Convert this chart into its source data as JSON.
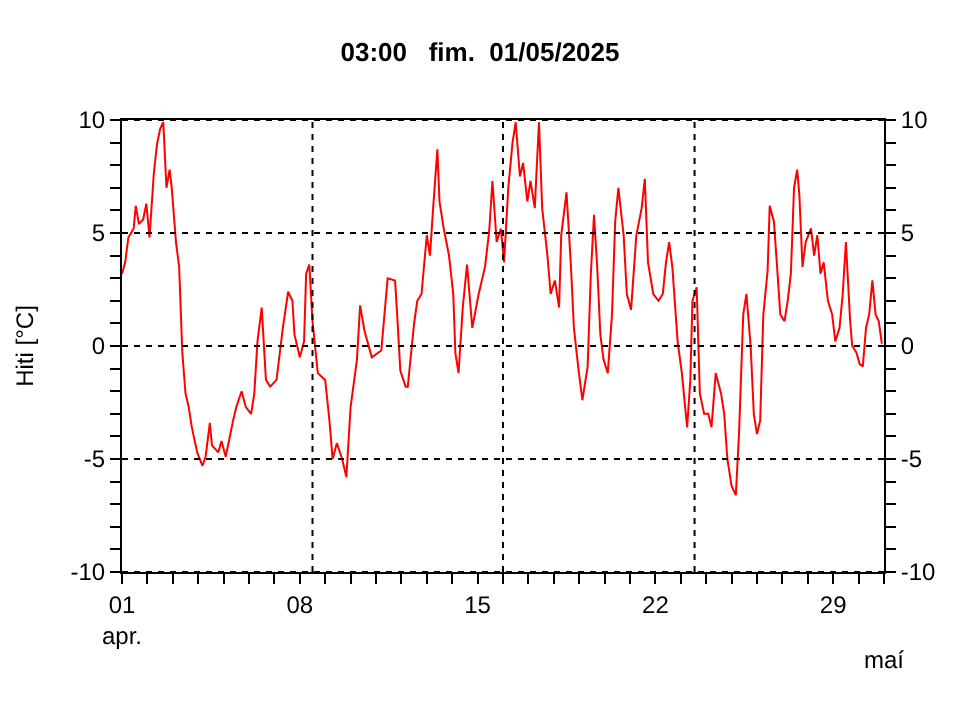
{
  "chart_data": {
    "type": "line",
    "title": "03:00   fim.  01/05/2025",
    "ylabel": "Hiti [°C]",
    "x": [
      "2025-04-01T00:00",
      "2025-04-01T03:00",
      "2025-04-01T06:00",
      "2025-04-01T11:00",
      "2025-04-01T13:00",
      "2025-04-01T16:00",
      "2025-04-01T20:00",
      "2025-04-01T23:00",
      "2025-04-02T02:00",
      "2025-04-02T06:00",
      "2025-04-02T09:00",
      "2025-04-02T12:00",
      "2025-04-02T15:00",
      "2025-04-02T18:00",
      "2025-04-02T21:00",
      "2025-04-02T23:00",
      "2025-04-03T03:00",
      "2025-04-03T06:00",
      "2025-04-03T09:00",
      "2025-04-03T12:00",
      "2025-04-03T15:00",
      "2025-04-03T18:00",
      "2025-04-03T23:00",
      "2025-04-04T04:00",
      "2025-04-04T07:00",
      "2025-04-04T11:00",
      "2025-04-04T13:00",
      "2025-04-04T19:00",
      "2025-04-04T22:00",
      "2025-04-05T02:00",
      "2025-04-05T09:00",
      "2025-04-05T12:00",
      "2025-04-05T17:00",
      "2025-04-05T21:00",
      "2025-04-06T02:00",
      "2025-04-06T05:00",
      "2025-04-06T08:00",
      "2025-04-06T12:00",
      "2025-04-06T16:00",
      "2025-04-06T20:00",
      "2025-04-07T02:00",
      "2025-04-07T08:00",
      "2025-04-07T13:00",
      "2025-04-07T17:00",
      "2025-04-07T19:00",
      "2025-04-08T00:00",
      "2025-04-08T04:00",
      "2025-04-08T06:00",
      "2025-04-08T09:00",
      "2025-04-08T12:00",
      "2025-04-08T17:00",
      "2025-04-09T00:00",
      "2025-04-09T04:00",
      "2025-04-09T07:00",
      "2025-04-09T11:00",
      "2025-04-09T16:00",
      "2025-04-09T20:00",
      "2025-04-10T00:00",
      "2025-04-10T06:00",
      "2025-04-10T09:00",
      "2025-04-10T13:00",
      "2025-04-10T20:00",
      "2025-04-11T05:00",
      "2025-04-11T08:00",
      "2025-04-11T11:00",
      "2025-04-11T18:00",
      "2025-04-11T20:00",
      "2025-04-11T23:00",
      "2025-04-12T04:00",
      "2025-04-12T06:00",
      "2025-04-12T12:00",
      "2025-04-12T15:00",
      "2025-04-12T19:00",
      "2025-04-13T00:00",
      "2025-04-13T03:00",
      "2025-04-13T06:00",
      "2025-04-13T10:00",
      "2025-04-13T12:00",
      "2025-04-13T16:00",
      "2025-04-13T21:00",
      "2025-04-14T01:00",
      "2025-04-14T03:00",
      "2025-04-14T06:00",
      "2025-04-14T10:00",
      "2025-04-14T14:00",
      "2025-04-14T19:00",
      "2025-04-15T01:00",
      "2025-04-15T07:00",
      "2025-04-15T11:00",
      "2025-04-15T14:00",
      "2025-04-15T18:00",
      "2025-04-15T22:00",
      "2025-04-16T01:00",
      "2025-04-16T05:00",
      "2025-04-16T09:00",
      "2025-04-16T12:00",
      "2025-04-16T16:00",
      "2025-04-16T19:00",
      "2025-04-16T23:00",
      "2025-04-17T02:00",
      "2025-04-17T06:00",
      "2025-04-17T10:00",
      "2025-04-17T13:00",
      "2025-04-17T18:00",
      "2025-04-17T21:00",
      "2025-04-18T01:00",
      "2025-04-18T05:00",
      "2025-04-18T07:00",
      "2025-04-18T12:00",
      "2025-04-18T16:00",
      "2025-04-18T19:00",
      "2025-04-18T23:00",
      "2025-04-19T03:00",
      "2025-04-19T08:00",
      "2025-04-19T11:00",
      "2025-04-19T14:00",
      "2025-04-19T17:00",
      "2025-04-19T20:00",
      "2025-04-19T23:00",
      "2025-04-20T03:00",
      "2025-04-20T07:00",
      "2025-04-20T10:00",
      "2025-04-20T13:00",
      "2025-04-20T18:00",
      "2025-04-20T21:00",
      "2025-04-21T01:00",
      "2025-04-21T06:00",
      "2025-04-21T11:00",
      "2025-04-21T14:00",
      "2025-04-21T17:00",
      "2025-04-21T22:00",
      "2025-04-22T03:00",
      "2025-04-22T07:00",
      "2025-04-22T10:00",
      "2025-04-22T13:00",
      "2025-04-22T16:00",
      "2025-04-22T21:00",
      "2025-04-23T01:00",
      "2025-04-23T06:00",
      "2025-04-23T09:00",
      "2025-04-23T11:00",
      "2025-04-23T15:00",
      "2025-04-23T18:00",
      "2025-04-23T22:00",
      "2025-04-24T02:00",
      "2025-04-24T05:00",
      "2025-04-24T09:00",
      "2025-04-24T14:00",
      "2025-04-24T17:00",
      "2025-04-24T20:00",
      "2025-04-25T00:00",
      "2025-04-25T04:00",
      "2025-04-25T07:00",
      "2025-04-25T11:00",
      "2025-04-25T14:00",
      "2025-04-25T18:00",
      "2025-04-25T21:00",
      "2025-04-26T00:00",
      "2025-04-26T03:00",
      "2025-04-26T06:00",
      "2025-04-26T10:00",
      "2025-04-26T12:00",
      "2025-04-26T16:00",
      "2025-04-26T19:00",
      "2025-04-26T22:00",
      "2025-04-27T02:00",
      "2025-04-27T05:00",
      "2025-04-27T08:00",
      "2025-04-27T11:00",
      "2025-04-27T14:00",
      "2025-04-27T16:00",
      "2025-04-27T19:00",
      "2025-04-27T22:00",
      "2025-04-28T03:00",
      "2025-04-28T06:00",
      "2025-04-28T09:00",
      "2025-04-28T12:00",
      "2025-04-28T15:00",
      "2025-04-28T19:00",
      "2025-04-28T23:00",
      "2025-04-29T02:00",
      "2025-04-29T06:00",
      "2025-04-29T09:00",
      "2025-04-29T12:00",
      "2025-04-29T16:00",
      "2025-04-29T18:00",
      "2025-04-29T22:00",
      "2025-04-30T01:00",
      "2025-04-30T04:00",
      "2025-04-30T07:00",
      "2025-04-30T10:00",
      "2025-04-30T13:00",
      "2025-04-30T16:00",
      "2025-04-30T19:00",
      "2025-04-30T22:00"
    ],
    "series": [
      {
        "color": "#ff0000",
        "values": [
          3.2,
          3.7,
          4.8,
          5.2,
          6.2,
          5.4,
          5.6,
          6.3,
          4.8,
          7.6,
          8.9,
          9.6,
          9.9,
          7.0,
          7.8,
          7.0,
          4.6,
          3.5,
          -0.3,
          -2.1,
          -2.7,
          -3.6,
          -4.7,
          -5.3,
          -4.9,
          -3.4,
          -4.4,
          -4.7,
          -4.2,
          -4.9,
          -3.3,
          -2.7,
          -2.0,
          -2.7,
          -3.0,
          -2.1,
          0.2,
          1.7,
          -1.5,
          -1.8,
          -1.5,
          0.8,
          2.4,
          2.0,
          0.5,
          -0.5,
          0.2,
          3.2,
          3.6,
          1.1,
          -1.2,
          -1.5,
          -3.3,
          -5.0,
          -4.3,
          -5.0,
          -5.8,
          -2.7,
          -0.6,
          1.8,
          0.7,
          -0.5,
          -0.2,
          1.4,
          3.0,
          2.9,
          1.4,
          -1.1,
          -1.8,
          -1.8,
          1.0,
          2.0,
          2.3,
          4.9,
          4.0,
          6.1,
          8.7,
          6.4,
          5.2,
          4.0,
          2.3,
          -0.3,
          -1.2,
          1.7,
          3.6,
          0.8,
          2.3,
          3.5,
          5.1,
          7.3,
          4.6,
          5.2,
          3.7,
          7.0,
          9.0,
          9.9,
          7.5,
          8.1,
          6.4,
          7.3,
          6.1,
          9.9,
          6.1,
          4.0,
          2.3,
          2.9,
          1.7,
          4.9,
          6.8,
          3.7,
          0.8,
          -0.9,
          -2.4,
          -0.9,
          3.2,
          5.8,
          3.5,
          0.5,
          -0.6,
          -1.2,
          1.4,
          5.5,
          7.0,
          4.9,
          2.3,
          1.6,
          4.9,
          6.1,
          7.4,
          3.7,
          2.3,
          2.0,
          2.3,
          3.7,
          4.6,
          3.5,
          0.2,
          -1.2,
          -3.6,
          -1.5,
          2.0,
          2.6,
          -2.1,
          -3.0,
          -3.0,
          -3.6,
          -1.2,
          -2.1,
          -3.0,
          -5.0,
          -6.2,
          -6.6,
          -3.9,
          1.4,
          2.3,
          0.0,
          -3.0,
          -3.9,
          -3.3,
          1.4,
          3.3,
          6.2,
          5.5,
          3.5,
          1.4,
          1.1,
          2.0,
          3.2,
          7.0,
          7.8,
          6.7,
          3.5,
          4.6,
          5.2,
          4.0,
          4.9,
          3.2,
          3.7,
          2.0,
          1.4,
          0.2,
          0.8,
          2.3,
          4.6,
          1.1,
          0.0,
          -0.3,
          -0.8,
          -0.9,
          0.8,
          1.4,
          2.9,
          1.4,
          1.1,
          0.1
        ]
      }
    ],
    "xlim": [
      "2025-04-01",
      "2025-05-01"
    ],
    "xticks": [
      {
        "value": "2025-04-01",
        "label": "01\napr."
      },
      {
        "value": "2025-04-02",
        "label": null
      },
      {
        "value": "2025-04-03",
        "label": null
      },
      {
        "value": "2025-04-04",
        "label": null
      },
      {
        "value": "2025-04-05",
        "label": null
      },
      {
        "value": "2025-04-06",
        "label": null
      },
      {
        "value": "2025-04-07",
        "label": null
      },
      {
        "value": "2025-04-08",
        "label": "08"
      },
      {
        "value": "2025-04-09",
        "label": null
      },
      {
        "value": "2025-04-10",
        "label": null
      },
      {
        "value": "2025-04-11",
        "label": null
      },
      {
        "value": "2025-04-12",
        "label": null
      },
      {
        "value": "2025-04-13",
        "label": null
      },
      {
        "value": "2025-04-14",
        "label": null
      },
      {
        "value": "2025-04-15",
        "label": "15"
      },
      {
        "value": "2025-04-16",
        "label": null
      },
      {
        "value": "2025-04-17",
        "label": null
      },
      {
        "value": "2025-04-18",
        "label": null
      },
      {
        "value": "2025-04-19",
        "label": null
      },
      {
        "value": "2025-04-20",
        "label": null
      },
      {
        "value": "2025-04-21",
        "label": null
      },
      {
        "value": "2025-04-22",
        "label": "22"
      },
      {
        "value": "2025-04-23",
        "label": null
      },
      {
        "value": "2025-04-24",
        "label": null
      },
      {
        "value": "2025-04-25",
        "label": null
      },
      {
        "value": "2025-04-26",
        "label": null
      },
      {
        "value": "2025-04-27",
        "label": null
      },
      {
        "value": "2025-04-28",
        "label": null
      },
      {
        "value": "2025-04-29",
        "label": "29"
      },
      {
        "value": "2025-04-30",
        "label": null
      },
      {
        "value": "2025-05-01",
        "label": null
      }
    ],
    "annotations": [
      "maí"
    ],
    "ylim": [
      -10,
      10
    ],
    "yticks": [
      -10,
      {
        "value": -9,
        "label": null
      },
      {
        "value": -8,
        "label": null
      },
      {
        "value": -7,
        "label": null
      },
      {
        "value": -6,
        "label": null
      },
      -5,
      {
        "value": -4,
        "label": null
      },
      {
        "value": -3,
        "label": null
      },
      {
        "value": -2,
        "label": null
      },
      {
        "value": -1,
        "label": null
      },
      0,
      {
        "value": 1,
        "label": null
      },
      {
        "value": 2,
        "label": null
      },
      {
        "value": 3,
        "label": null
      },
      {
        "value": 4,
        "label": null
      },
      5,
      {
        "value": 6,
        "label": null
      },
      {
        "value": 7,
        "label": null
      },
      {
        "value": 8,
        "label": null
      },
      {
        "value": 9,
        "label": null
      },
      10
    ],
    "y2lim": [
      -10,
      10
    ],
    "y2ticks": [
      -10,
      {
        "value": -9,
        "label": null
      },
      {
        "value": -8,
        "label": null
      },
      {
        "value": -7,
        "label": null
      },
      {
        "value": -6,
        "label": null
      },
      -5,
      {
        "value": -4,
        "label": null
      },
      {
        "value": -3,
        "label": null
      },
      {
        "value": -2,
        "label": null
      },
      {
        "value": -1,
        "label": null
      },
      0,
      {
        "value": 1,
        "label": null
      },
      {
        "value": 2,
        "label": null
      },
      {
        "value": 3,
        "label": null
      },
      {
        "value": 4,
        "label": null
      },
      5,
      {
        "value": 6,
        "label": null
      },
      {
        "value": 7,
        "label": null
      },
      {
        "value": 8,
        "label": null
      },
      {
        "value": 9,
        "label": null
      },
      10
    ],
    "ref_lines": [
      {
        "axis": "x",
        "value": "2025-04-08T12:00",
        "color": "#000000",
        "line_style": "dotted"
      },
      {
        "axis": "x",
        "value": "2025-04-16T00:00",
        "color": "#000000",
        "line_style": "dotted"
      },
      {
        "axis": "x",
        "value": "2025-04-23T13:00",
        "color": "#000000",
        "line_style": "dotted"
      }
    ],
    "grid": "y",
    "legend": false,
    "marker": "none",
    "line_style": "solid"
  }
}
